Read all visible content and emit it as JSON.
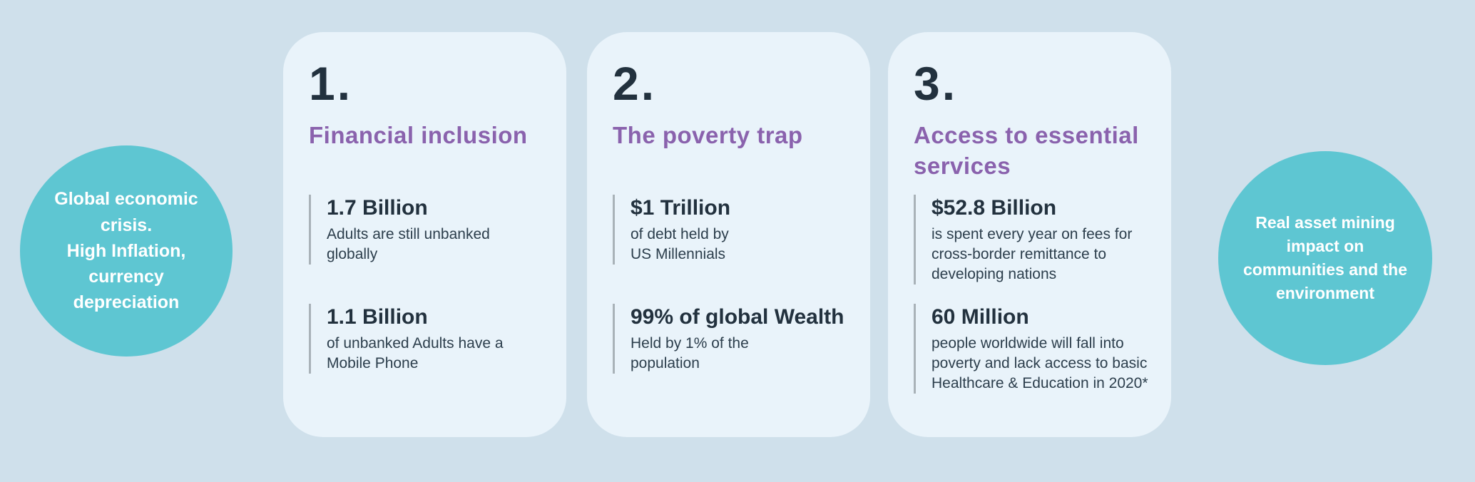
{
  "colors": {
    "background": "#cfe0eb",
    "circle_fill": "#5ec6d2",
    "circle_text": "#ffffff",
    "card_fill": "#e9f3fa",
    "number_text": "#22313e",
    "heading_text": "#8a62ad",
    "stat_value_text": "#22313e",
    "stat_desc_text": "#2c3e4c",
    "stat_bar": "#a9b2b8"
  },
  "left_circle": {
    "text": "Global economic\ncrisis.\nHigh Inflation,\ncurrency\ndepreciation"
  },
  "right_circle": {
    "text": "Real asset  mining\nimpact on\ncommunities and the\nenvironment"
  },
  "cards": [
    {
      "number": "1.",
      "title": "Financial inclusion",
      "stats": [
        {
          "value": "1.7 Billion",
          "description": "Adults are still unbanked\nglobally"
        },
        {
          "value": "1.1 Billion",
          "description": "of unbanked Adults have a\nMobile Phone"
        }
      ]
    },
    {
      "number": "2.",
      "title": "The poverty trap",
      "stats": [
        {
          "value": "$1 Trillion",
          "description": "of debt held by\nUS Millennials"
        },
        {
          "value": "99% of global Wealth",
          "description": "Held by 1% of the\npopulation"
        }
      ]
    },
    {
      "number": "3.",
      "title": "Access to essential\nservices",
      "stats": [
        {
          "value": "$52.8 Billion",
          "description": "is spent every year on fees for\ncross-border remittance to\ndeveloping nations"
        },
        {
          "value": "60 Million",
          "description": "people worldwide will fall into\npoverty and lack access to basic\nHealthcare & Education in 2020*"
        }
      ]
    }
  ]
}
